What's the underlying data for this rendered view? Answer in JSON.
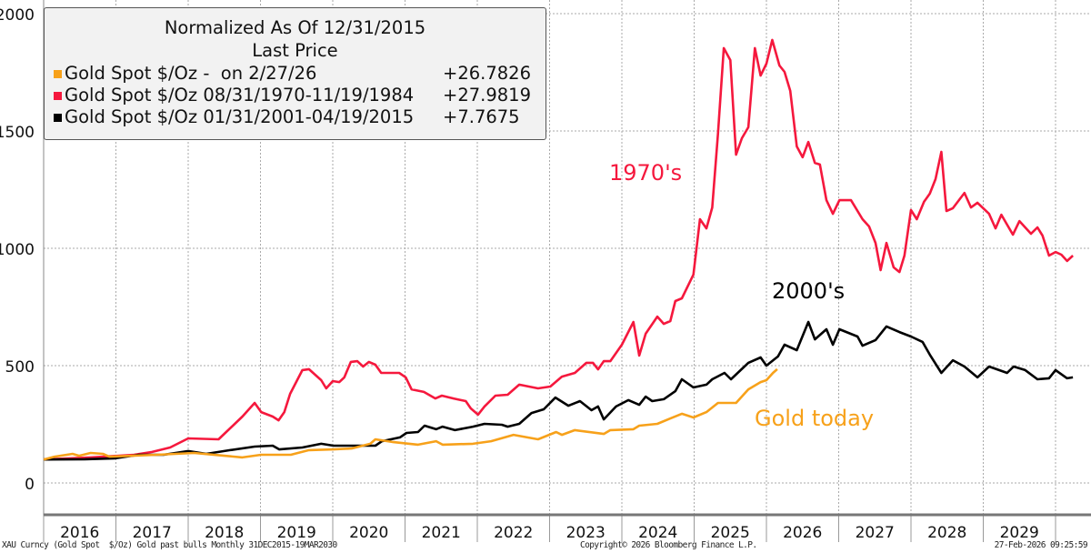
{
  "legend": {
    "title": "Normalized As Of 12/31/2015",
    "subtitle": "Last Price",
    "entries": [
      {
        "label": "Gold Spot $/Oz -  on 2/27/26",
        "value": "+26.7826",
        "color": "#f7a11a"
      },
      {
        "label": "Gold Spot $/Oz 08/31/1970-11/19/1984",
        "value": "+27.9819",
        "color": "#f5183d"
      },
      {
        "label": "Gold Spot $/Oz 01/31/2001-04/19/2015",
        "value": "+7.7675",
        "color": "#000000"
      }
    ]
  },
  "annotations": {
    "red": "1970's",
    "black": "2000's",
    "orange": "Gold today"
  },
  "footer": {
    "left": "XAU Curncy (Gold Spot  $/Oz) Gold past bulls Monthly 31DEC2015-19MAR2030",
    "center": "Copyright© 2026 Bloomberg Finance L.P.",
    "right": "27-Feb-2026 09:25:59"
  },
  "chart_data": {
    "type": "line",
    "title": "",
    "xlabel": "",
    "ylabel": "",
    "xlim": [
      2016,
      2030.3
    ],
    "ylim": [
      -100,
      2050
    ],
    "yticks": [
      0,
      500,
      1000,
      1500,
      2000
    ],
    "xtick_labels": [
      "2016",
      "2017",
      "2018",
      "2019",
      "2020",
      "2021",
      "2022",
      "2023",
      "2024",
      "2025",
      "2026",
      "2027",
      "2028",
      "2029"
    ],
    "grid": true,
    "legend_position": "top-left",
    "series": [
      {
        "name": "Gold Spot $/Oz 08/31/1970-11/19/1984",
        "color": "#f5183d",
        "points": [
          [
            2016.0,
            100
          ],
          [
            2016.65,
            109
          ],
          [
            2017.25,
            120
          ],
          [
            2017.5,
            132
          ],
          [
            2017.75,
            151
          ],
          [
            2018.0,
            190
          ],
          [
            2018.42,
            186
          ],
          [
            2018.75,
            283
          ],
          [
            2018.92,
            341
          ],
          [
            2019.01,
            302
          ],
          [
            2019.17,
            283
          ],
          [
            2019.25,
            267
          ],
          [
            2019.33,
            302
          ],
          [
            2019.41,
            380
          ],
          [
            2019.58,
            481
          ],
          [
            2019.67,
            485
          ],
          [
            2019.84,
            438
          ],
          [
            2019.91,
            403
          ],
          [
            2020.0,
            434
          ],
          [
            2020.09,
            430
          ],
          [
            2020.16,
            450
          ],
          [
            2020.25,
            516
          ],
          [
            2020.34,
            519
          ],
          [
            2020.42,
            496
          ],
          [
            2020.5,
            516
          ],
          [
            2020.59,
            504
          ],
          [
            2020.67,
            469
          ],
          [
            2020.92,
            469
          ],
          [
            2021.01,
            450
          ],
          [
            2021.09,
            399
          ],
          [
            2021.26,
            388
          ],
          [
            2021.42,
            360
          ],
          [
            2021.51,
            372
          ],
          [
            2021.67,
            360
          ],
          [
            2021.84,
            349
          ],
          [
            2021.91,
            318
          ],
          [
            2022.01,
            291
          ],
          [
            2022.1,
            326
          ],
          [
            2022.25,
            372
          ],
          [
            2022.42,
            376
          ],
          [
            2022.58,
            419
          ],
          [
            2022.84,
            403
          ],
          [
            2023.01,
            411
          ],
          [
            2023.17,
            453
          ],
          [
            2023.35,
            469
          ],
          [
            2023.51,
            512
          ],
          [
            2023.6,
            512
          ],
          [
            2023.67,
            484
          ],
          [
            2023.75,
            519
          ],
          [
            2023.84,
            519
          ],
          [
            2024.0,
            589
          ],
          [
            2024.16,
            686
          ],
          [
            2024.24,
            543
          ],
          [
            2024.33,
            636
          ],
          [
            2024.49,
            709
          ],
          [
            2024.58,
            678
          ],
          [
            2024.67,
            690
          ],
          [
            2024.74,
            775
          ],
          [
            2024.83,
            787
          ],
          [
            2024.99,
            888
          ],
          [
            2025.08,
            1124
          ],
          [
            2025.17,
            1085
          ],
          [
            2025.25,
            1174
          ],
          [
            2025.33,
            1488
          ],
          [
            2025.41,
            1853
          ],
          [
            2025.5,
            1802
          ],
          [
            2025.58,
            1399
          ],
          [
            2025.66,
            1469
          ],
          [
            2025.75,
            1516
          ],
          [
            2025.84,
            1853
          ],
          [
            2025.92,
            1736
          ],
          [
            2026.0,
            1787
          ],
          [
            2026.08,
            1888
          ],
          [
            2026.18,
            1779
          ],
          [
            2026.25,
            1752
          ],
          [
            2026.33,
            1671
          ],
          [
            2026.42,
            1434
          ],
          [
            2026.5,
            1388
          ],
          [
            2026.58,
            1453
          ],
          [
            2026.67,
            1364
          ],
          [
            2026.74,
            1357
          ],
          [
            2026.83,
            1205
          ],
          [
            2026.92,
            1147
          ],
          [
            2027.01,
            1205
          ],
          [
            2027.17,
            1205
          ],
          [
            2027.33,
            1124
          ],
          [
            2027.42,
            1093
          ],
          [
            2027.51,
            1023
          ],
          [
            2027.58,
            907
          ],
          [
            2027.66,
            1023
          ],
          [
            2027.76,
            919
          ],
          [
            2027.84,
            899
          ],
          [
            2027.91,
            969
          ],
          [
            2028.0,
            1163
          ],
          [
            2028.08,
            1124
          ],
          [
            2028.18,
            1198
          ],
          [
            2028.26,
            1233
          ],
          [
            2028.34,
            1295
          ],
          [
            2028.42,
            1411
          ],
          [
            2028.49,
            1159
          ],
          [
            2028.58,
            1171
          ],
          [
            2028.74,
            1236
          ],
          [
            2028.83,
            1174
          ],
          [
            2028.92,
            1194
          ],
          [
            2029.08,
            1147
          ],
          [
            2029.17,
            1085
          ],
          [
            2029.25,
            1143
          ],
          [
            2029.41,
            1058
          ],
          [
            2029.5,
            1116
          ],
          [
            2029.66,
            1062
          ],
          [
            2029.75,
            1089
          ],
          [
            2029.82,
            1054
          ],
          [
            2029.91,
            969
          ],
          [
            2030.0,
            984
          ],
          [
            2030.08,
            973
          ],
          [
            2030.16,
            946
          ],
          [
            2030.24,
            969
          ]
        ]
      },
      {
        "name": "Gold Spot $/Oz 01/31/2001-04/19/2015",
        "color": "#000000",
        "points": [
          [
            2016.0,
            100
          ],
          [
            2016.57,
            101
          ],
          [
            2016.99,
            105
          ],
          [
            2017.32,
            120
          ],
          [
            2017.66,
            120
          ],
          [
            2018.0,
            136
          ],
          [
            2018.25,
            124
          ],
          [
            2018.58,
            140
          ],
          [
            2018.92,
            155
          ],
          [
            2019.17,
            159
          ],
          [
            2019.26,
            143
          ],
          [
            2019.58,
            151
          ],
          [
            2019.84,
            167
          ],
          [
            2020.01,
            159
          ],
          [
            2020.59,
            159
          ],
          [
            2020.68,
            178
          ],
          [
            2020.93,
            194
          ],
          [
            2021.02,
            213
          ],
          [
            2021.18,
            217
          ],
          [
            2021.27,
            244
          ],
          [
            2021.43,
            229
          ],
          [
            2021.52,
            240
          ],
          [
            2021.69,
            225
          ],
          [
            2021.94,
            240
          ],
          [
            2022.1,
            252
          ],
          [
            2022.34,
            248
          ],
          [
            2022.42,
            240
          ],
          [
            2022.58,
            252
          ],
          [
            2022.75,
            298
          ],
          [
            2022.92,
            314
          ],
          [
            2023.08,
            364
          ],
          [
            2023.26,
            329
          ],
          [
            2023.42,
            349
          ],
          [
            2023.58,
            310
          ],
          [
            2023.67,
            326
          ],
          [
            2023.75,
            271
          ],
          [
            2023.92,
            326
          ],
          [
            2024.09,
            353
          ],
          [
            2024.24,
            333
          ],
          [
            2024.33,
            368
          ],
          [
            2024.42,
            349
          ],
          [
            2024.58,
            357
          ],
          [
            2024.74,
            391
          ],
          [
            2024.83,
            442
          ],
          [
            2024.99,
            407
          ],
          [
            2025.17,
            419
          ],
          [
            2025.25,
            442
          ],
          [
            2025.42,
            469
          ],
          [
            2025.51,
            442
          ],
          [
            2025.75,
            512
          ],
          [
            2025.92,
            535
          ],
          [
            2026.0,
            500
          ],
          [
            2026.16,
            539
          ],
          [
            2026.25,
            589
          ],
          [
            2026.42,
            566
          ],
          [
            2026.58,
            686
          ],
          [
            2026.67,
            612
          ],
          [
            2026.83,
            655
          ],
          [
            2026.92,
            589
          ],
          [
            2027.01,
            655
          ],
          [
            2027.26,
            624
          ],
          [
            2027.33,
            585
          ],
          [
            2027.51,
            609
          ],
          [
            2027.66,
            667
          ],
          [
            2027.84,
            643
          ],
          [
            2028.0,
            624
          ],
          [
            2028.16,
            601
          ],
          [
            2028.26,
            547
          ],
          [
            2028.42,
            469
          ],
          [
            2028.58,
            523
          ],
          [
            2028.74,
            496
          ],
          [
            2028.92,
            450
          ],
          [
            2029.08,
            496
          ],
          [
            2029.33,
            469
          ],
          [
            2029.42,
            496
          ],
          [
            2029.58,
            481
          ],
          [
            2029.75,
            442
          ],
          [
            2029.91,
            446
          ],
          [
            2030.0,
            481
          ],
          [
            2030.16,
            446
          ],
          [
            2030.24,
            450
          ]
        ]
      },
      {
        "name": "Gold Spot $/Oz -  on 2/27/26",
        "color": "#f7a11a",
        "points": [
          [
            2016.0,
            100
          ],
          [
            2016.15,
            112
          ],
          [
            2016.4,
            124
          ],
          [
            2016.49,
            116
          ],
          [
            2016.65,
            128
          ],
          [
            2016.82,
            124
          ],
          [
            2016.91,
            112
          ],
          [
            2017.57,
            120
          ],
          [
            2018.08,
            128
          ],
          [
            2018.5,
            116
          ],
          [
            2018.75,
            109
          ],
          [
            2019.01,
            120
          ],
          [
            2019.42,
            120
          ],
          [
            2019.67,
            140
          ],
          [
            2020.01,
            143
          ],
          [
            2020.26,
            147
          ],
          [
            2020.52,
            167
          ],
          [
            2020.59,
            186
          ],
          [
            2020.84,
            174
          ],
          [
            2021.18,
            163
          ],
          [
            2021.43,
            178
          ],
          [
            2021.52,
            163
          ],
          [
            2021.94,
            167
          ],
          [
            2022.19,
            178
          ],
          [
            2022.5,
            205
          ],
          [
            2022.84,
            186
          ],
          [
            2023.09,
            217
          ],
          [
            2023.17,
            205
          ],
          [
            2023.35,
            225
          ],
          [
            2023.75,
            209
          ],
          [
            2023.84,
            225
          ],
          [
            2024.16,
            229
          ],
          [
            2024.24,
            244
          ],
          [
            2024.49,
            252
          ],
          [
            2024.67,
            275
          ],
          [
            2024.83,
            295
          ],
          [
            2024.99,
            279
          ],
          [
            2025.17,
            302
          ],
          [
            2025.33,
            341
          ],
          [
            2025.58,
            341
          ],
          [
            2025.75,
            399
          ],
          [
            2025.92,
            430
          ],
          [
            2026.0,
            438
          ],
          [
            2026.09,
            469
          ],
          [
            2026.15,
            485
          ]
        ]
      }
    ]
  }
}
